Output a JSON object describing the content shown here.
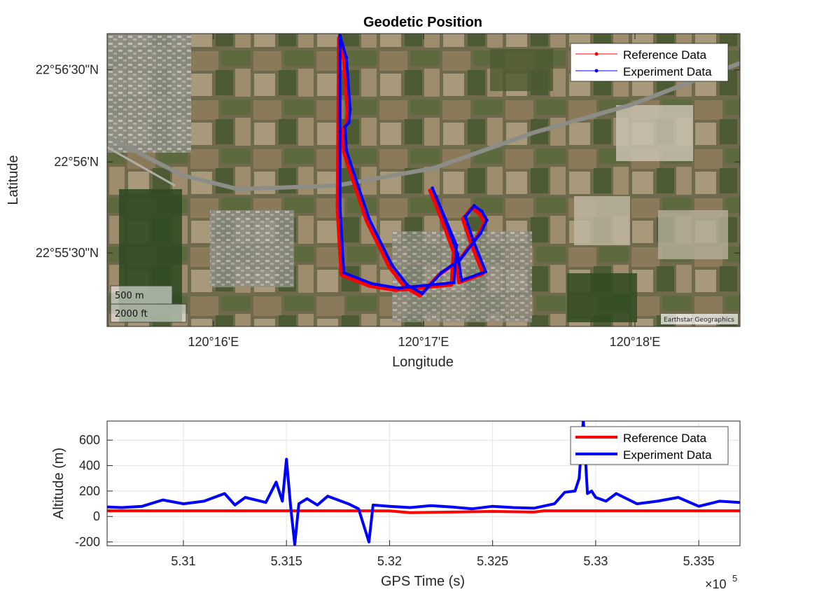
{
  "chart_data": [
    {
      "type": "scatter",
      "title": "Geodetic Position",
      "xlabel": "Longitude",
      "ylabel": "Latitude",
      "xlim": [
        120.2583,
        120.3083
      ],
      "ylim": [
        22.9183,
        22.945
      ],
      "x_ticks": [
        120.2667,
        120.2833,
        120.3
      ],
      "x_tick_labels": [
        "120°16'E",
        "120°17'E",
        "120°18'E"
      ],
      "y_ticks": [
        22.925,
        22.9333,
        22.9417
      ],
      "y_tick_labels": [
        "22°55'30\"N",
        "22°56'N",
        "22°56'30\"N"
      ],
      "basemap": "satellite",
      "attribution": "Earthstar Geographics",
      "scalebar": [
        "500 m",
        "2000 ft"
      ],
      "legend_position": "top-right",
      "series": [
        {
          "name": "Reference Data",
          "color": "#ff0000",
          "x": [
            120.2766,
            120.277,
            120.2773,
            120.2772,
            120.2769,
            120.277,
            120.2773,
            120.2788,
            120.2806,
            120.2818,
            120.283,
            120.2845,
            120.286,
            120.2876,
            120.2881,
            120.2877,
            120.2871,
            120.2864,
            120.287,
            120.288,
            120.2861,
            120.2858,
            120.2851,
            120.2841,
            120.2838,
            120.2857,
            120.2855,
            120.2811,
            120.279,
            120.2768,
            120.2765,
            120.2766
          ],
          "y": [
            22.9446,
            22.9426,
            22.9379,
            22.9367,
            22.9363,
            22.9342,
            22.9331,
            22.9279,
            22.9237,
            22.9219,
            22.9211,
            22.923,
            22.9242,
            22.9266,
            22.9278,
            22.9286,
            22.9291,
            22.9281,
            22.926,
            22.9231,
            22.9223,
            22.9247,
            22.9269,
            22.9299,
            22.9307,
            22.9255,
            22.9221,
            22.9216,
            22.922,
            22.923,
            22.9289,
            22.9446
          ]
        },
        {
          "name": "Experiment Data",
          "color": "#0000ff",
          "x": [
            120.2767,
            120.2772,
            120.2775,
            120.2774,
            120.2771,
            120.2772,
            120.2775,
            120.279,
            120.2808,
            120.282,
            120.2832,
            120.2847,
            120.2862,
            120.2878,
            120.2883,
            120.2879,
            120.2873,
            120.2866,
            120.2872,
            120.2882,
            120.2863,
            120.286,
            120.2853,
            120.2843,
            120.284,
            120.2859,
            120.2857,
            120.2813,
            120.2792,
            120.277,
            120.2767,
            120.2767
          ],
          "y": [
            22.9448,
            22.9428,
            22.9381,
            22.9369,
            22.9365,
            22.9344,
            22.9333,
            22.9281,
            22.9239,
            22.9221,
            22.9213,
            22.9232,
            22.9244,
            22.9268,
            22.928,
            22.9288,
            22.9293,
            22.9283,
            22.9262,
            22.9233,
            22.9225,
            22.9249,
            22.9271,
            22.9301,
            22.9309,
            22.9257,
            22.9223,
            22.9218,
            22.9222,
            22.9232,
            22.9291,
            22.9448
          ]
        }
      ]
    },
    {
      "type": "line",
      "xlabel": "GPS Time (s)",
      "ylabel": "Altitude (m)",
      "xlim": [
        530630,
        533700
      ],
      "ylim": [
        -230,
        750
      ],
      "x_ticks": [
        531000,
        531500,
        532000,
        532500,
        533000,
        533500
      ],
      "x_tick_labels": [
        "5.31",
        "5.315",
        "5.32",
        "5.325",
        "5.33",
        "5.335"
      ],
      "x_exponent_label": "×10",
      "x_exponent_power": "5",
      "y_ticks": [
        -200,
        0,
        200,
        400,
        600
      ],
      "y_tick_labels": [
        "-200",
        "0",
        "200",
        "400",
        "600"
      ],
      "grid": true,
      "legend_position": "top-right",
      "series": [
        {
          "name": "Reference Data",
          "color": "#ff0000",
          "x": [
            530630,
            531000,
            531500,
            531800,
            532000,
            532100,
            532300,
            532500,
            532700,
            532750,
            532800,
            533000,
            533300,
            533700
          ],
          "y": [
            45,
            45,
            45,
            45,
            44,
            30,
            35,
            40,
            35,
            45,
            45,
            45,
            45,
            45
          ]
        },
        {
          "name": "Experiment Data",
          "color": "#0000ff",
          "x": [
            530630,
            530700,
            530800,
            530900,
            531000,
            531100,
            531200,
            531250,
            531300,
            531400,
            531450,
            531480,
            531500,
            531520,
            531540,
            531560,
            531600,
            531650,
            531700,
            531800,
            531850,
            531900,
            531920,
            532000,
            532100,
            532200,
            532300,
            532400,
            532500,
            532600,
            532700,
            532800,
            532850,
            532900,
            532920,
            532940,
            532960,
            532980,
            533000,
            533050,
            533100,
            533200,
            533300,
            533400,
            533500,
            533600,
            533700
          ],
          "y": [
            75,
            70,
            80,
            130,
            100,
            120,
            180,
            90,
            150,
            110,
            270,
            120,
            450,
            80,
            -220,
            100,
            140,
            90,
            160,
            100,
            60,
            -200,
            90,
            80,
            70,
            85,
            75,
            60,
            80,
            70,
            65,
            100,
            190,
            200,
            300,
            760,
            180,
            200,
            150,
            120,
            180,
            100,
            120,
            150,
            80,
            120,
            110
          ]
        }
      ]
    }
  ]
}
